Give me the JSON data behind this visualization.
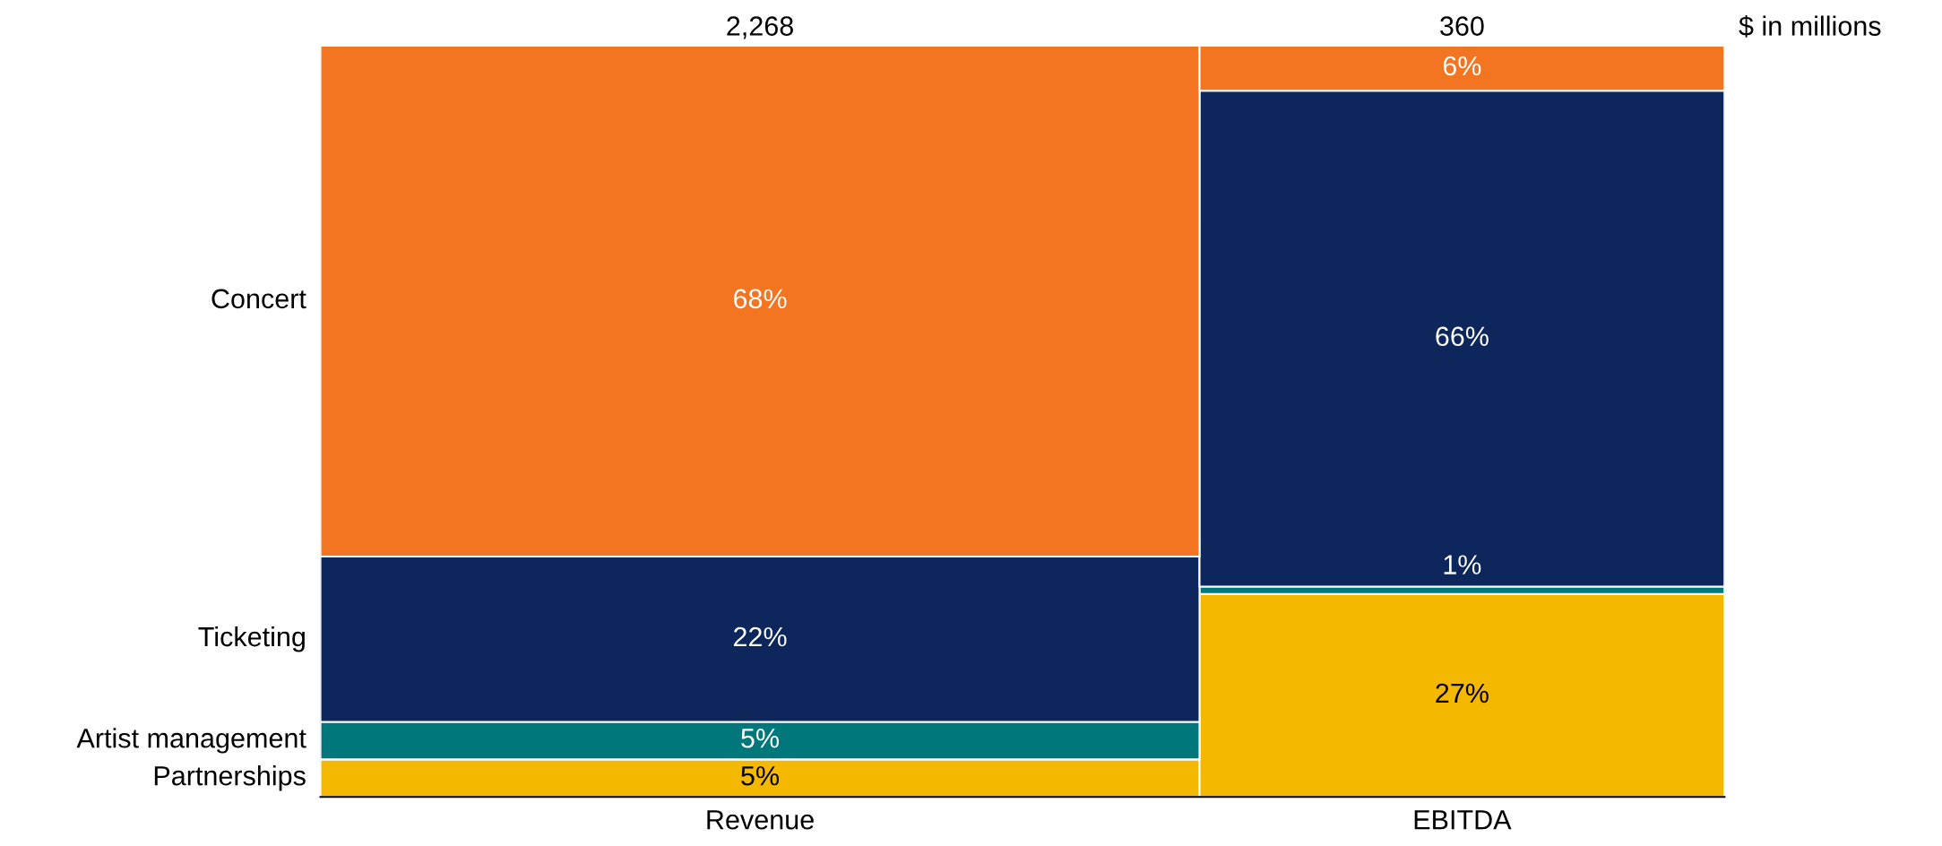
{
  "chart_data": {
    "type": "bar",
    "stacked": true,
    "categories": [
      "Revenue",
      "EBITDA"
    ],
    "series": [
      {
        "name": "Partnerships",
        "color": "#f5b800",
        "values": [
          5,
          27
        ],
        "value_labels": [
          "5%",
          "27%"
        ]
      },
      {
        "name": "Artist management",
        "color": "#00777a",
        "values": [
          5,
          1
        ],
        "value_labels": [
          "5%",
          "1%"
        ]
      },
      {
        "name": "Ticketing",
        "color": "#0d265c",
        "values": [
          22,
          66
        ],
        "value_labels": [
          "22%",
          "66%"
        ]
      },
      {
        "name": "Concert",
        "color": "#f47521",
        "values": [
          68,
          6
        ],
        "value_labels": [
          "68%",
          "6%"
        ]
      }
    ],
    "annotations": [
      {
        "text": "2,268",
        "x": "Revenue",
        "y": 100
      },
      {
        "text": "360",
        "x": "EBITDA",
        "y": 100
      },
      "$ in millions"
    ],
    "ylim": [
      0,
      100
    ],
    "tick_labels": "x",
    "legend": false,
    "grid": false
  }
}
